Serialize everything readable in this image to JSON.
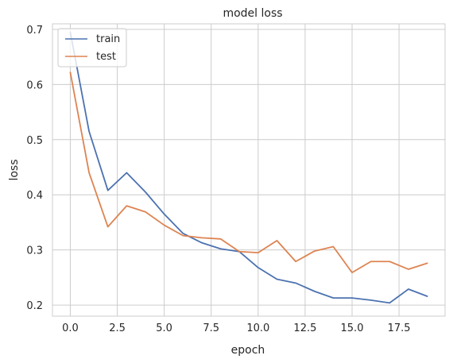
{
  "chart_data": {
    "type": "line",
    "title": "model loss",
    "xlabel": "epoch",
    "ylabel": "loss",
    "xlim": [
      -0.95,
      19.95
    ],
    "ylim": [
      0.18,
      0.71
    ],
    "xticks": [
      0,
      2.5,
      5,
      7.5,
      10,
      12.5,
      15,
      17.5
    ],
    "xtick_labels": [
      "0.0",
      "2.5",
      "5.0",
      "7.5",
      "10.0",
      "12.5",
      "15.0",
      "17.5"
    ],
    "yticks": [
      0.2,
      0.3,
      0.4,
      0.5,
      0.6,
      0.7
    ],
    "ytick_labels": [
      "0.2",
      "0.3",
      "0.4",
      "0.5",
      "0.6",
      "0.7"
    ],
    "grid": true,
    "legend_position": "top-left",
    "x": [
      0,
      1,
      2,
      3,
      4,
      5,
      6,
      7,
      8,
      9,
      10,
      11,
      12,
      13,
      14,
      15,
      16,
      17,
      18,
      19
    ],
    "series": [
      {
        "name": "train",
        "color": "#4c72b0",
        "values": [
          0.695,
          0.515,
          0.408,
          0.44,
          0.405,
          0.365,
          0.33,
          0.313,
          0.302,
          0.297,
          0.268,
          0.247,
          0.24,
          0.225,
          0.213,
          0.213,
          0.209,
          0.204,
          0.229,
          0.216
        ]
      },
      {
        "name": "test",
        "color": "#dd8452",
        "values": [
          0.622,
          0.44,
          0.342,
          0.38,
          0.369,
          0.345,
          0.326,
          0.322,
          0.32,
          0.297,
          0.295,
          0.317,
          0.279,
          0.298,
          0.306,
          0.259,
          0.279,
          0.279,
          0.265,
          0.276
        ]
      }
    ]
  }
}
